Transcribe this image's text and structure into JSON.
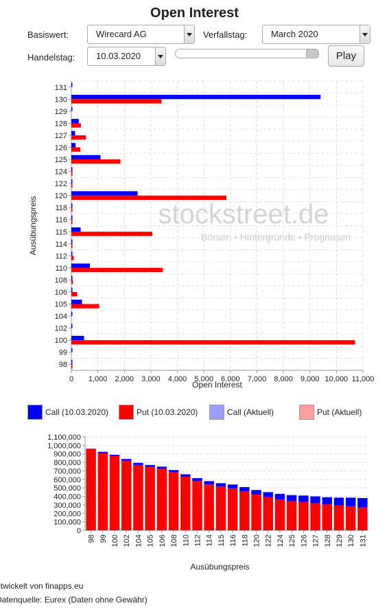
{
  "title": "Open Interest",
  "controls": {
    "basiswert_label": "Basiswert:",
    "basiswert_value": "Wirecard AG",
    "verfallstag_label": "Verfallstag:",
    "verfallstag_value": "March 2020",
    "handelstag_label": "Handelstag:",
    "handelstag_value": "10.03.2020",
    "slider_position": 1.0,
    "play_label": "Play"
  },
  "watermark": {
    "brand": "stockstreet.de",
    "tagline": "Börsen • Hintergründe • Prognosen"
  },
  "legend": [
    {
      "label": "Call (10.03.2020)",
      "color": "#0000ff"
    },
    {
      "label": "Put (10.03.2020)",
      "color": "#ff0000"
    },
    {
      "label": "Call (Aktuell)",
      "color": "#9e9eff"
    },
    {
      "label": "Put (Aktuell)",
      "color": "#ff9e9e"
    }
  ],
  "footer": {
    "line1": "ntwickelt von finapps.eu",
    "line2": "Datenquelle: Eurex (Daten ohne Gewähr)"
  },
  "chart_data": [
    {
      "type": "bar",
      "orientation": "horizontal",
      "categories": [
        "98",
        "99",
        "100",
        "102",
        "104",
        "105",
        "106",
        "108",
        "110",
        "112",
        "114",
        "115",
        "116",
        "118",
        "120",
        "122",
        "124",
        "125",
        "126",
        "127",
        "128",
        "129",
        "130",
        "131"
      ],
      "series": [
        {
          "name": "Call (10.03.2020)",
          "color": "#0000ff",
          "values": [
            10,
            15,
            480,
            15,
            20,
            400,
            10,
            15,
            700,
            20,
            25,
            350,
            15,
            20,
            2500,
            25,
            30,
            1100,
            160,
            140,
            280,
            20,
            9400,
            15
          ]
        },
        {
          "name": "Put (10.03.2020)",
          "color": "#ff0000",
          "values": [
            10,
            0,
            10700,
            0,
            0,
            1050,
            220,
            60,
            3450,
            90,
            30,
            3050,
            25,
            40,
            5850,
            20,
            40,
            1850,
            340,
            550,
            360,
            0,
            3400,
            0
          ]
        }
      ],
      "xlabel": "Open Interest",
      "ylabel": "Ausübungspreis",
      "xlim": [
        0,
        11000
      ],
      "xticks": [
        "0",
        "1,000",
        "2,000",
        "3,000",
        "4,000",
        "5,000",
        "6,000",
        "7,000",
        "8,000",
        "9,000",
        "10,000",
        "11,000"
      ],
      "grid": true
    },
    {
      "type": "bar",
      "stacked": true,
      "categories": [
        "98",
        "99",
        "100",
        "102",
        "104",
        "105",
        "106",
        "108",
        "110",
        "112",
        "114",
        "115",
        "116",
        "118",
        "120",
        "122",
        "124",
        "125",
        "126",
        "127",
        "128",
        "129",
        "130",
        "131"
      ],
      "series": [
        {
          "name": "Put (10.03.2020)",
          "color": "#ff0000",
          "values": [
            960000,
            910000,
            875000,
            820000,
            770000,
            745000,
            725000,
            685000,
            630000,
            580000,
            540000,
            515000,
            495000,
            460000,
            420000,
            390000,
            365000,
            345000,
            335000,
            320000,
            305000,
            295000,
            285000,
            270000
          ]
        },
        {
          "name": "Call (10.03.2020)",
          "color": "#0000ff",
          "values": [
            3000,
            15000,
            15000,
            20000,
            25000,
            25000,
            25000,
            25000,
            30000,
            35000,
            40000,
            40000,
            45000,
            50000,
            55000,
            60000,
            65000,
            70000,
            75000,
            80000,
            85000,
            90000,
            100000,
            110000
          ]
        }
      ],
      "xlabel": "Ausübungspreis",
      "ylabel": "",
      "ylim": [
        0,
        1100000
      ],
      "yticks": [
        "0",
        "100,000",
        "200,000",
        "300,000",
        "400,000",
        "500,000",
        "600,000",
        "700,000",
        "800,000",
        "900,000",
        "1,000,000",
        "1,100,000"
      ],
      "grid": true
    }
  ]
}
